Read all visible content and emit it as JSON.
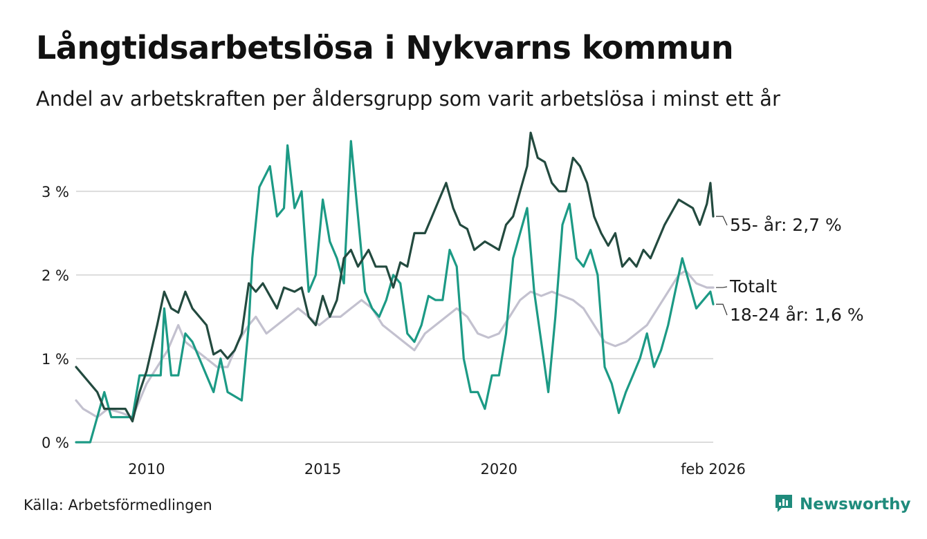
{
  "title": "Långtidsarbetslösa i Nykvarns kommun",
  "subtitle": "Andel av arbetskraften per åldersgrupp som varit arbetslösa i minst ett år",
  "source": "Källa: Arbetsförmedlingen",
  "brand": {
    "name": "Newsworthy",
    "icon": "newsworthy-logo-icon",
    "color": "#1f8b7c"
  },
  "chart_data": {
    "type": "line",
    "title": "Långtidsarbetslösa i Nykvarns kommun",
    "xlabel": "",
    "ylabel": "",
    "xlim": [
      2008.0,
      2026.08
    ],
    "ylim": [
      0,
      3.8
    ],
    "grid": true,
    "y_ticks": [
      {
        "value": 0,
        "label": "0 %"
      },
      {
        "value": 1,
        "label": "1 %"
      },
      {
        "value": 2,
        "label": "2 %"
      },
      {
        "value": 3,
        "label": "3 %"
      }
    ],
    "x_ticks": [
      {
        "value": 2010,
        "label": "2010"
      },
      {
        "value": 2015,
        "label": "2015"
      },
      {
        "value": 2020,
        "label": "2020"
      },
      {
        "value": 2026.08,
        "label": "feb 2026"
      }
    ],
    "series": [
      {
        "name": "Totalt",
        "label": "Totalt",
        "color": "#c3c1cf",
        "points": [
          [
            2008.0,
            0.5
          ],
          [
            2008.2,
            0.4
          ],
          [
            2008.6,
            0.3
          ],
          [
            2008.9,
            0.4
          ],
          [
            2009.3,
            0.35
          ],
          [
            2009.6,
            0.3
          ],
          [
            2009.8,
            0.5
          ],
          [
            2010.0,
            0.7
          ],
          [
            2010.3,
            0.9
          ],
          [
            2010.6,
            1.1
          ],
          [
            2010.9,
            1.4
          ],
          [
            2011.1,
            1.2
          ],
          [
            2011.4,
            1.1
          ],
          [
            2011.7,
            1.0
          ],
          [
            2012.0,
            0.9
          ],
          [
            2012.3,
            0.9
          ],
          [
            2012.6,
            1.2
          ],
          [
            2012.9,
            1.4
          ],
          [
            2013.1,
            1.5
          ],
          [
            2013.4,
            1.3
          ],
          [
            2013.7,
            1.4
          ],
          [
            2014.0,
            1.5
          ],
          [
            2014.3,
            1.6
          ],
          [
            2014.6,
            1.5
          ],
          [
            2014.9,
            1.4
          ],
          [
            2015.2,
            1.5
          ],
          [
            2015.5,
            1.5
          ],
          [
            2015.8,
            1.6
          ],
          [
            2016.1,
            1.7
          ],
          [
            2016.4,
            1.6
          ],
          [
            2016.7,
            1.4
          ],
          [
            2017.0,
            1.3
          ],
          [
            2017.3,
            1.2
          ],
          [
            2017.6,
            1.1
          ],
          [
            2017.9,
            1.3
          ],
          [
            2018.2,
            1.4
          ],
          [
            2018.5,
            1.5
          ],
          [
            2018.8,
            1.6
          ],
          [
            2019.1,
            1.5
          ],
          [
            2019.4,
            1.3
          ],
          [
            2019.7,
            1.25
          ],
          [
            2020.0,
            1.3
          ],
          [
            2020.3,
            1.5
          ],
          [
            2020.6,
            1.7
          ],
          [
            2020.9,
            1.8
          ],
          [
            2021.2,
            1.75
          ],
          [
            2021.5,
            1.8
          ],
          [
            2021.8,
            1.75
          ],
          [
            2022.1,
            1.7
          ],
          [
            2022.4,
            1.6
          ],
          [
            2022.7,
            1.4
          ],
          [
            2023.0,
            1.2
          ],
          [
            2023.3,
            1.15
          ],
          [
            2023.6,
            1.2
          ],
          [
            2023.9,
            1.3
          ],
          [
            2024.2,
            1.4
          ],
          [
            2024.5,
            1.6
          ],
          [
            2024.8,
            1.8
          ],
          [
            2025.1,
            2.0
          ],
          [
            2025.3,
            2.05
          ],
          [
            2025.6,
            1.9
          ],
          [
            2025.9,
            1.85
          ],
          [
            2026.08,
            1.85
          ]
        ]
      },
      {
        "name": "18-24 år",
        "label": "18-24 år: 1,6 %",
        "color": "#1c9a85",
        "points": [
          [
            2008.0,
            0.0
          ],
          [
            2008.4,
            0.0
          ],
          [
            2008.6,
            0.3
          ],
          [
            2008.8,
            0.6
          ],
          [
            2009.0,
            0.3
          ],
          [
            2009.3,
            0.3
          ],
          [
            2009.6,
            0.3
          ],
          [
            2009.8,
            0.8
          ],
          [
            2010.1,
            0.8
          ],
          [
            2010.4,
            0.8
          ],
          [
            2010.5,
            1.6
          ],
          [
            2010.7,
            0.8
          ],
          [
            2010.9,
            0.8
          ],
          [
            2011.1,
            1.3
          ],
          [
            2011.3,
            1.2
          ],
          [
            2011.5,
            1.0
          ],
          [
            2011.7,
            0.8
          ],
          [
            2011.9,
            0.6
          ],
          [
            2012.1,
            1.0
          ],
          [
            2012.3,
            0.6
          ],
          [
            2012.5,
            0.55
          ],
          [
            2012.7,
            0.5
          ],
          [
            2012.9,
            1.4
          ],
          [
            2013.0,
            2.2
          ],
          [
            2013.2,
            3.05
          ],
          [
            2013.5,
            3.3
          ],
          [
            2013.7,
            2.7
          ],
          [
            2013.9,
            2.8
          ],
          [
            2014.0,
            3.55
          ],
          [
            2014.2,
            2.8
          ],
          [
            2014.4,
            3.0
          ],
          [
            2014.6,
            1.8
          ],
          [
            2014.8,
            2.0
          ],
          [
            2015.0,
            2.9
          ],
          [
            2015.2,
            2.4
          ],
          [
            2015.4,
            2.2
          ],
          [
            2015.6,
            1.9
          ],
          [
            2015.8,
            3.6
          ],
          [
            2016.0,
            2.7
          ],
          [
            2016.2,
            1.8
          ],
          [
            2016.4,
            1.6
          ],
          [
            2016.6,
            1.5
          ],
          [
            2016.8,
            1.7
          ],
          [
            2017.0,
            2.0
          ],
          [
            2017.2,
            1.9
          ],
          [
            2017.4,
            1.3
          ],
          [
            2017.6,
            1.2
          ],
          [
            2017.8,
            1.4
          ],
          [
            2018.0,
            1.75
          ],
          [
            2018.2,
            1.7
          ],
          [
            2018.4,
            1.7
          ],
          [
            2018.6,
            2.3
          ],
          [
            2018.8,
            2.1
          ],
          [
            2019.0,
            1.0
          ],
          [
            2019.2,
            0.6
          ],
          [
            2019.4,
            0.6
          ],
          [
            2019.6,
            0.4
          ],
          [
            2019.8,
            0.8
          ],
          [
            2020.0,
            0.8
          ],
          [
            2020.2,
            1.3
          ],
          [
            2020.4,
            2.2
          ],
          [
            2020.6,
            2.5
          ],
          [
            2020.8,
            2.8
          ],
          [
            2021.0,
            1.8
          ],
          [
            2021.2,
            1.2
          ],
          [
            2021.4,
            0.6
          ],
          [
            2021.6,
            1.5
          ],
          [
            2021.8,
            2.6
          ],
          [
            2022.0,
            2.85
          ],
          [
            2022.2,
            2.2
          ],
          [
            2022.4,
            2.1
          ],
          [
            2022.6,
            2.3
          ],
          [
            2022.8,
            2.0
          ],
          [
            2023.0,
            0.9
          ],
          [
            2023.2,
            0.7
          ],
          [
            2023.4,
            0.35
          ],
          [
            2023.6,
            0.6
          ],
          [
            2023.8,
            0.8
          ],
          [
            2024.0,
            1.0
          ],
          [
            2024.2,
            1.3
          ],
          [
            2024.4,
            0.9
          ],
          [
            2024.6,
            1.1
          ],
          [
            2024.8,
            1.4
          ],
          [
            2025.0,
            1.8
          ],
          [
            2025.2,
            2.2
          ],
          [
            2025.4,
            1.9
          ],
          [
            2025.6,
            1.6
          ],
          [
            2025.8,
            1.7
          ],
          [
            2026.0,
            1.8
          ],
          [
            2026.08,
            1.65
          ]
        ]
      },
      {
        "name": "55- år",
        "label": "55- år: 2,7 %",
        "color": "#234a3f",
        "points": [
          [
            2008.0,
            0.9
          ],
          [
            2008.2,
            0.8
          ],
          [
            2008.4,
            0.7
          ],
          [
            2008.6,
            0.6
          ],
          [
            2008.8,
            0.4
          ],
          [
            2009.1,
            0.4
          ],
          [
            2009.4,
            0.4
          ],
          [
            2009.6,
            0.25
          ],
          [
            2009.8,
            0.6
          ],
          [
            2010.0,
            0.85
          ],
          [
            2010.3,
            1.4
          ],
          [
            2010.5,
            1.8
          ],
          [
            2010.7,
            1.6
          ],
          [
            2010.9,
            1.55
          ],
          [
            2011.1,
            1.8
          ],
          [
            2011.3,
            1.6
          ],
          [
            2011.5,
            1.5
          ],
          [
            2011.7,
            1.4
          ],
          [
            2011.9,
            1.05
          ],
          [
            2012.1,
            1.1
          ],
          [
            2012.3,
            1.0
          ],
          [
            2012.5,
            1.1
          ],
          [
            2012.7,
            1.3
          ],
          [
            2012.9,
            1.9
          ],
          [
            2013.1,
            1.8
          ],
          [
            2013.3,
            1.9
          ],
          [
            2013.5,
            1.75
          ],
          [
            2013.7,
            1.6
          ],
          [
            2013.9,
            1.85
          ],
          [
            2014.2,
            1.8
          ],
          [
            2014.4,
            1.85
          ],
          [
            2014.6,
            1.5
          ],
          [
            2014.8,
            1.4
          ],
          [
            2015.0,
            1.75
          ],
          [
            2015.2,
            1.5
          ],
          [
            2015.4,
            1.7
          ],
          [
            2015.6,
            2.2
          ],
          [
            2015.8,
            2.3
          ],
          [
            2016.0,
            2.1
          ],
          [
            2016.3,
            2.3
          ],
          [
            2016.5,
            2.1
          ],
          [
            2016.8,
            2.1
          ],
          [
            2017.0,
            1.85
          ],
          [
            2017.2,
            2.15
          ],
          [
            2017.4,
            2.1
          ],
          [
            2017.6,
            2.5
          ],
          [
            2017.9,
            2.5
          ],
          [
            2018.1,
            2.7
          ],
          [
            2018.3,
            2.9
          ],
          [
            2018.5,
            3.1
          ],
          [
            2018.7,
            2.8
          ],
          [
            2018.9,
            2.6
          ],
          [
            2019.1,
            2.55
          ],
          [
            2019.3,
            2.3
          ],
          [
            2019.6,
            2.4
          ],
          [
            2019.8,
            2.35
          ],
          [
            2020.0,
            2.3
          ],
          [
            2020.2,
            2.6
          ],
          [
            2020.4,
            2.7
          ],
          [
            2020.6,
            3.0
          ],
          [
            2020.8,
            3.3
          ],
          [
            2020.9,
            3.7
          ],
          [
            2021.1,
            3.4
          ],
          [
            2021.3,
            3.35
          ],
          [
            2021.5,
            3.1
          ],
          [
            2021.7,
            3.0
          ],
          [
            2021.9,
            3.0
          ],
          [
            2022.1,
            3.4
          ],
          [
            2022.3,
            3.3
          ],
          [
            2022.5,
            3.1
          ],
          [
            2022.7,
            2.7
          ],
          [
            2022.9,
            2.5
          ],
          [
            2023.1,
            2.35
          ],
          [
            2023.3,
            2.5
          ],
          [
            2023.5,
            2.1
          ],
          [
            2023.7,
            2.2
          ],
          [
            2023.9,
            2.1
          ],
          [
            2024.1,
            2.3
          ],
          [
            2024.3,
            2.2
          ],
          [
            2024.5,
            2.4
          ],
          [
            2024.7,
            2.6
          ],
          [
            2024.9,
            2.75
          ],
          [
            2025.1,
            2.9
          ],
          [
            2025.3,
            2.85
          ],
          [
            2025.5,
            2.8
          ],
          [
            2025.7,
            2.6
          ],
          [
            2025.9,
            2.85
          ],
          [
            2026.0,
            3.1
          ],
          [
            2026.08,
            2.7
          ]
        ]
      }
    ]
  }
}
